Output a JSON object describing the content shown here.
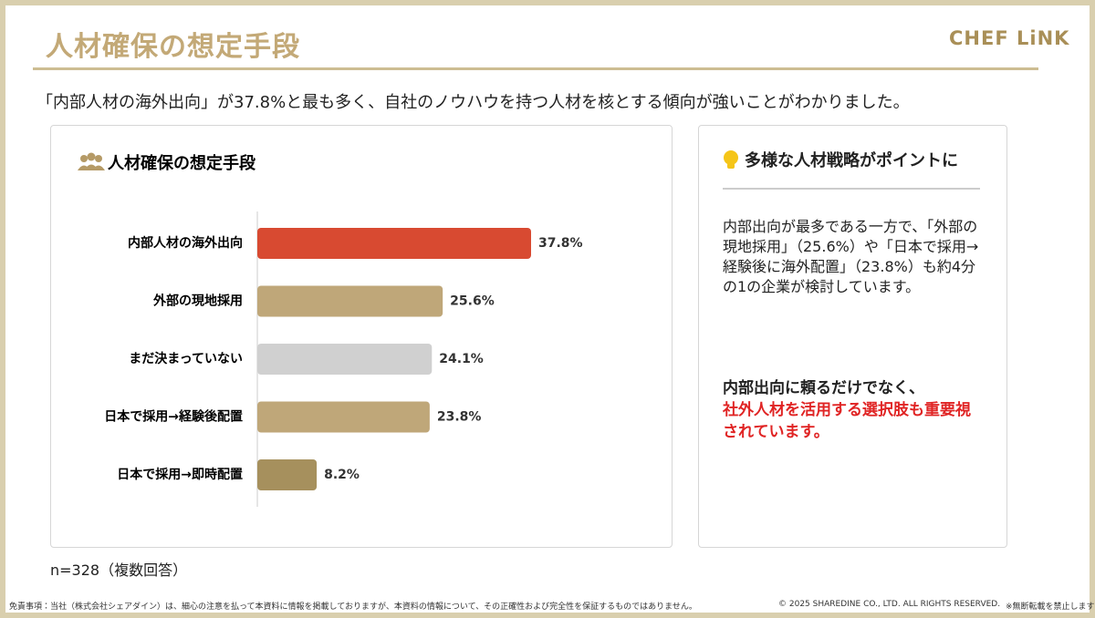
{
  "header": {
    "title": "人材確保の想定手段",
    "logo": "CHEF LiNK"
  },
  "lead": "「内部人材の海外出向」が37.8%と最も多く、自社のノウハウを持つ人材を核とする傾向が強いことがわかりました。",
  "chart_data": {
    "type": "bar",
    "orientation": "horizontal",
    "title": "人材確保の想定手段",
    "categories": [
      "内部人材の海外出向",
      "外部の現地採用",
      "まだ決まっていない",
      "日本で採用→経験後配置",
      "日本で採用→即時配置"
    ],
    "values": [
      37.8,
      25.6,
      24.1,
      23.8,
      8.2
    ],
    "value_labels": [
      "37.8%",
      "25.6%",
      "24.1%",
      "23.8%",
      "8.2%"
    ],
    "colors": [
      "#d84a31",
      "#bfa779",
      "#d0d0d0",
      "#bfa779",
      "#a6905d"
    ]
  },
  "side": {
    "title": "多様な人材戦略がポイントに",
    "body": "内部出向が最多である一方で、「外部の現地採用」（25.6%）や「日本で採用→経験後に海外配置」（23.8%）も約4分の1の企業が検討しています。",
    "emphasis": "内部出向に頼るだけでなく、",
    "highlight": "社外人材を活用する選択肢も重要視されています。"
  },
  "note": "n=328（複数回答）",
  "footer": {
    "disclaimer": "免責事項：当社（株式会社シェアダイン）は、細心の注意を払って本資料に情報を掲載しておりますが、本資料の情報について、その正確性および完全性を保証するものではありません。",
    "copyright": "© 2025 SHAREDINE CO., LTD. ALL RIGHTS RESERVED.",
    "notice": "※無断転載を禁止します"
  }
}
